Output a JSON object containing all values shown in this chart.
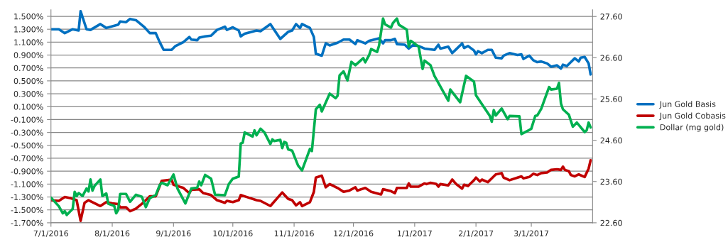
{
  "chart_data": {
    "type": "line",
    "grid": "y",
    "legend": "right",
    "line_style": "solid",
    "marker": "none",
    "xlim": [
      "2016-07-01",
      "2017-04-01"
    ],
    "xticks": [
      {
        "value": "2016-07-01",
        "label": "7/1/2016"
      },
      {
        "value": "2016-08-01",
        "label": "8/1/2016"
      },
      {
        "value": "2016-09-01",
        "label": "9/1/2016"
      },
      {
        "value": "2016-10-01",
        "label": "10/1/2016"
      },
      {
        "value": "2016-11-01",
        "label": "11/1/2016"
      },
      {
        "value": "2016-12-01",
        "label": "12/1/2016"
      },
      {
        "value": "2017-01-01",
        "label": "1/1/2017"
      },
      {
        "value": "2017-02-01",
        "label": "2/1/2017"
      },
      {
        "value": "2017-03-01",
        "label": "3/1/2017"
      }
    ],
    "ylim": [
      -1.7,
      1.6
    ],
    "yticks": [
      {
        "value": -1.7,
        "label": "-1.700%"
      },
      {
        "value": -1.5,
        "label": "-1.500%"
      },
      {
        "value": -1.3,
        "label": "-1.300%"
      },
      {
        "value": -1.1,
        "label": "-1.100%"
      },
      {
        "value": -0.9,
        "label": "-0.900%"
      },
      {
        "value": -0.7,
        "label": "-0.700%"
      },
      {
        "value": -0.5,
        "label": "-0.500%"
      },
      {
        "value": -0.3,
        "label": "-0.300%"
      },
      {
        "value": -0.1,
        "label": "-0.100%"
      },
      {
        "value": 0.1,
        "label": "0.100%"
      },
      {
        "value": 0.3,
        "label": "0.300%"
      },
      {
        "value": 0.5,
        "label": "0.500%"
      },
      {
        "value": 0.7,
        "label": "0.700%"
      },
      {
        "value": 0.9,
        "label": "0.900%"
      },
      {
        "value": 1.1,
        "label": "1.100%"
      },
      {
        "value": 1.3,
        "label": "1.300%"
      },
      {
        "value": 1.5,
        "label": "1.500%"
      }
    ],
    "y2lim": [
      22.6,
      27.76
    ],
    "y2ticks": [
      {
        "value": 22.6,
        "label": "22.60"
      },
      {
        "value": 23.6,
        "label": "23.60"
      },
      {
        "value": 24.6,
        "label": "24.60"
      },
      {
        "value": 25.6,
        "label": "25.60"
      },
      {
        "value": 26.6,
        "label": "26.60"
      },
      {
        "value": 27.6,
        "label": "27.60"
      }
    ],
    "series": [
      {
        "name": "Jun Gold Basis",
        "color": "#0070c0",
        "x": [
          "2016-07-01",
          "2016-07-05",
          "2016-07-08",
          "2016-07-12",
          "2016-07-15",
          "2016-07-16",
          "2016-07-19",
          "2016-07-21",
          "2016-07-26",
          "2016-07-29",
          "2016-08-04",
          "2016-08-05",
          "2016-08-08",
          "2016-08-10",
          "2016-08-13",
          "2016-08-17",
          "2016-08-20",
          "2016-08-23",
          "2016-08-25",
          "2016-08-27",
          "2016-08-31",
          "2016-09-02",
          "2016-09-06",
          "2016-09-09",
          "2016-09-10",
          "2016-09-13",
          "2016-09-14",
          "2016-09-17",
          "2016-09-20",
          "2016-09-23",
          "2016-09-27",
          "2016-09-28",
          "2016-10-01",
          "2016-10-04",
          "2016-10-05",
          "2016-10-07",
          "2016-10-13",
          "2016-10-15",
          "2016-10-20",
          "2016-10-25",
          "2016-10-29",
          "2016-10-31",
          "2016-11-02",
          "2016-11-04",
          "2016-11-05",
          "2016-11-09",
          "2016-11-11",
          "2016-11-12",
          "2016-11-15",
          "2016-11-17",
          "2016-11-19",
          "2016-11-23",
          "2016-11-26",
          "2016-11-29",
          "2016-12-02",
          "2016-12-03",
          "2016-12-07",
          "2016-12-09",
          "2016-12-14",
          "2016-12-16",
          "2016-12-17",
          "2016-12-20",
          "2016-12-22",
          "2016-12-23",
          "2016-12-27",
          "2016-12-29",
          "2016-12-31",
          "2017-01-03",
          "2017-01-06",
          "2017-01-11",
          "2017-01-13",
          "2017-01-14",
          "2017-01-18",
          "2017-01-20",
          "2017-01-22",
          "2017-01-25",
          "2017-01-26",
          "2017-01-28",
          "2017-01-31",
          "2017-02-01",
          "2017-02-02",
          "2017-02-04",
          "2017-02-07",
          "2017-02-09",
          "2017-02-11",
          "2017-02-14",
          "2017-02-15",
          "2017-02-18",
          "2017-02-22",
          "2017-02-24",
          "2017-02-25",
          "2017-02-28",
          "2017-03-02",
          "2017-03-04",
          "2017-03-06",
          "2017-03-09",
          "2017-03-11",
          "2017-03-14",
          "2017-03-16",
          "2017-03-17",
          "2017-03-19",
          "2017-03-21",
          "2017-03-23",
          "2017-03-25",
          "2017-03-26",
          "2017-03-28",
          "2017-03-30",
          "2017-03-31"
        ],
        "values": [
          1.3,
          1.3,
          1.24,
          1.3,
          1.28,
          1.58,
          1.3,
          1.29,
          1.38,
          1.32,
          1.37,
          1.42,
          1.41,
          1.46,
          1.44,
          1.34,
          1.24,
          1.24,
          1.1,
          0.98,
          0.98,
          1.04,
          1.1,
          1.18,
          1.14,
          1.13,
          1.17,
          1.19,
          1.2,
          1.29,
          1.34,
          1.29,
          1.33,
          1.28,
          1.19,
          1.23,
          1.28,
          1.27,
          1.38,
          1.15,
          1.26,
          1.28,
          1.38,
          1.32,
          1.38,
          1.32,
          1.18,
          0.92,
          0.89,
          1.08,
          1.05,
          1.09,
          1.14,
          1.14,
          1.07,
          1.13,
          1.08,
          1.12,
          1.16,
          1.08,
          1.13,
          1.13,
          1.15,
          1.07,
          1.06,
          1.0,
          1.05,
          1.04,
          1.0,
          0.98,
          1.06,
          1.0,
          1.03,
          0.93,
          0.99,
          1.08,
          1.01,
          1.04,
          0.97,
          0.91,
          0.96,
          0.93,
          0.98,
          0.98,
          0.86,
          0.85,
          0.89,
          0.93,
          0.9,
          0.91,
          0.84,
          0.89,
          0.82,
          0.79,
          0.8,
          0.77,
          0.72,
          0.74,
          0.69,
          0.75,
          0.73,
          0.79,
          0.85,
          0.8,
          0.86,
          0.87,
          0.77,
          0.6
        ]
      },
      {
        "name": "Jun Gold Cobasis",
        "color": "#c00000",
        "x": [
          "2016-07-01",
          "2016-07-05",
          "2016-07-08",
          "2016-07-11",
          "2016-07-14",
          "2016-07-16",
          "2016-07-18",
          "2016-07-20",
          "2016-07-22",
          "2016-07-26",
          "2016-07-29",
          "2016-08-01",
          "2016-08-04",
          "2016-08-05",
          "2016-08-08",
          "2016-08-10",
          "2016-08-13",
          "2016-08-17",
          "2016-08-20",
          "2016-08-23",
          "2016-08-26",
          "2016-08-31",
          "2016-09-01",
          "2016-09-06",
          "2016-09-09",
          "2016-09-10",
          "2016-09-14",
          "2016-09-16",
          "2016-09-20",
          "2016-09-23",
          "2016-09-27",
          "2016-09-28",
          "2016-10-01",
          "2016-10-04",
          "2016-10-05",
          "2016-10-07",
          "2016-10-13",
          "2016-10-15",
          "2016-10-20",
          "2016-10-26",
          "2016-10-29",
          "2016-10-31",
          "2016-11-02",
          "2016-11-04",
          "2016-11-05",
          "2016-11-09",
          "2016-11-11",
          "2016-11-12",
          "2016-11-15",
          "2016-11-17",
          "2016-11-19",
          "2016-11-23",
          "2016-11-26",
          "2016-11-29",
          "2016-12-02",
          "2016-12-03",
          "2016-12-07",
          "2016-12-10",
          "2016-12-15",
          "2016-12-16",
          "2016-12-20",
          "2016-12-22",
          "2016-12-23",
          "2016-12-28",
          "2016-12-29",
          "2016-12-30",
          "2017-01-03",
          "2017-01-06",
          "2017-01-07",
          "2017-01-09",
          "2017-01-12",
          "2017-01-13",
          "2017-01-14",
          "2017-01-18",
          "2017-01-20",
          "2017-01-22",
          "2017-01-25",
          "2017-01-26",
          "2017-01-28",
          "2017-01-31",
          "2017-02-01",
          "2017-02-03",
          "2017-02-04",
          "2017-02-07",
          "2017-02-09",
          "2017-02-11",
          "2017-02-14",
          "2017-02-15",
          "2017-02-18",
          "2017-02-22",
          "2017-02-24",
          "2017-02-25",
          "2017-02-28",
          "2017-03-02",
          "2017-03-04",
          "2017-03-06",
          "2017-03-09",
          "2017-03-11",
          "2017-03-14",
          "2017-03-16",
          "2017-03-17",
          "2017-03-18",
          "2017-03-20",
          "2017-03-21",
          "2017-03-23",
          "2017-03-25",
          "2017-03-28",
          "2017-03-30",
          "2017-03-31"
        ],
        "values": [
          -1.35,
          -1.36,
          -1.3,
          -1.32,
          -1.35,
          -1.67,
          -1.39,
          -1.35,
          -1.38,
          -1.44,
          -1.38,
          -1.4,
          -1.41,
          -1.46,
          -1.46,
          -1.52,
          -1.48,
          -1.38,
          -1.29,
          -1.29,
          -1.05,
          -1.03,
          -1.11,
          -1.16,
          -1.24,
          -1.19,
          -1.18,
          -1.24,
          -1.27,
          -1.35,
          -1.39,
          -1.36,
          -1.38,
          -1.35,
          -1.27,
          -1.29,
          -1.35,
          -1.36,
          -1.44,
          -1.23,
          -1.33,
          -1.35,
          -1.43,
          -1.38,
          -1.44,
          -1.38,
          -1.22,
          -1.0,
          -0.97,
          -1.15,
          -1.1,
          -1.16,
          -1.22,
          -1.2,
          -1.15,
          -1.2,
          -1.16,
          -1.22,
          -1.26,
          -1.18,
          -1.21,
          -1.24,
          -1.16,
          -1.16,
          -1.09,
          -1.14,
          -1.14,
          -1.09,
          -1.1,
          -1.08,
          -1.1,
          -1.14,
          -1.1,
          -1.12,
          -1.03,
          -1.1,
          -1.17,
          -1.11,
          -1.13,
          -1.04,
          -1.0,
          -1.06,
          -1.03,
          -1.07,
          -1.01,
          -0.95,
          -0.93,
          -1.0,
          -1.04,
          -1.0,
          -0.98,
          -1.01,
          -0.99,
          -0.94,
          -0.96,
          -0.93,
          -0.92,
          -0.88,
          -0.87,
          -0.88,
          -0.83,
          -0.88,
          -0.9,
          -0.96,
          -0.98,
          -0.95,
          -0.99,
          -0.86,
          -0.73
        ]
      },
      {
        "name": "Dollar (mg gold)",
        "color": "#00b050",
        "axis": "y2",
        "x": [
          "2016-07-01",
          "2016-07-05",
          "2016-07-07",
          "2016-07-08",
          "2016-07-09",
          "2016-07-12",
          "2016-07-13",
          "2016-07-14",
          "2016-07-15",
          "2016-07-17",
          "2016-07-19",
          "2016-07-20",
          "2016-07-21",
          "2016-07-22",
          "2016-07-23",
          "2016-07-26",
          "2016-07-27",
          "2016-07-29",
          "2016-07-30",
          "2016-08-02",
          "2016-08-03",
          "2016-08-04",
          "2016-08-05",
          "2016-08-08",
          "2016-08-10",
          "2016-08-13",
          "2016-08-16",
          "2016-08-18",
          "2016-08-20",
          "2016-08-23",
          "2016-08-25",
          "2016-08-26",
          "2016-08-29",
          "2016-09-01",
          "2016-09-03",
          "2016-09-07",
          "2016-09-10",
          "2016-09-13",
          "2016-09-14",
          "2016-09-15",
          "2016-09-17",
          "2016-09-20",
          "2016-09-22",
          "2016-09-27",
          "2016-09-29",
          "2016-10-01",
          "2016-10-04",
          "2016-10-05",
          "2016-10-06",
          "2016-10-07",
          "2016-10-11",
          "2016-10-12",
          "2016-10-13",
          "2016-10-15",
          "2016-10-17",
          "2016-10-20",
          "2016-10-21",
          "2016-10-22",
          "2016-10-25",
          "2016-10-26",
          "2016-10-27",
          "2016-10-28",
          "2016-10-29",
          "2016-10-31",
          "2016-11-03",
          "2016-11-05",
          "2016-11-09",
          "2016-11-10",
          "2016-11-12",
          "2016-11-14",
          "2016-11-15",
          "2016-11-19",
          "2016-11-22",
          "2016-11-23",
          "2016-11-24",
          "2016-11-26",
          "2016-11-28",
          "2016-11-30",
          "2016-12-02",
          "2016-12-06",
          "2016-12-07",
          "2016-12-09",
          "2016-12-10",
          "2016-12-13",
          "2016-12-14",
          "2016-12-16",
          "2016-12-17",
          "2016-12-20",
          "2016-12-21",
          "2016-12-23",
          "2016-12-24",
          "2016-12-28",
          "2016-12-29",
          "2016-12-30",
          "2017-01-03",
          "2017-01-05",
          "2017-01-06",
          "2017-01-09",
          "2017-01-11",
          "2017-01-18",
          "2017-01-19",
          "2017-01-24",
          "2017-01-27",
          "2017-01-31",
          "2017-02-01",
          "2017-02-08",
          "2017-02-09",
          "2017-02-10",
          "2017-02-11",
          "2017-02-14",
          "2017-02-17",
          "2017-02-18",
          "2017-02-23",
          "2017-02-24",
          "2017-02-28",
          "2017-03-01",
          "2017-03-03",
          "2017-03-04",
          "2017-03-06",
          "2017-03-10",
          "2017-03-11",
          "2017-03-14",
          "2017-03-15",
          "2017-03-16",
          "2017-03-17",
          "2017-03-20",
          "2017-03-22",
          "2017-03-24",
          "2017-03-28",
          "2017-03-29",
          "2017-03-30",
          "2017-03-31"
        ],
        "values": [
          23.21,
          23.0,
          22.83,
          22.88,
          22.79,
          22.94,
          23.35,
          23.25,
          23.32,
          23.25,
          23.43,
          23.36,
          23.65,
          23.38,
          23.49,
          23.65,
          23.25,
          23.31,
          23.06,
          23.01,
          22.83,
          22.91,
          23.3,
          23.3,
          23.11,
          23.28,
          23.23,
          22.98,
          23.2,
          23.27,
          23.51,
          23.57,
          23.51,
          23.77,
          23.43,
          23.07,
          23.43,
          23.45,
          23.6,
          23.51,
          23.76,
          23.67,
          23.28,
          23.27,
          23.54,
          23.67,
          23.72,
          24.52,
          24.54,
          24.79,
          24.69,
          24.84,
          24.72,
          24.88,
          24.79,
          24.51,
          24.62,
          24.58,
          24.61,
          24.41,
          24.56,
          24.54,
          24.38,
          24.35,
          23.99,
          23.87,
          24.39,
          24.34,
          25.35,
          25.46,
          25.3,
          25.73,
          25.62,
          25.68,
          26.17,
          26.27,
          26.05,
          26.5,
          26.42,
          26.59,
          26.49,
          26.67,
          26.81,
          26.74,
          26.9,
          27.55,
          27.41,
          27.33,
          27.44,
          27.55,
          27.4,
          27.28,
          26.87,
          27.01,
          26.87,
          26.33,
          26.53,
          26.42,
          26.16,
          25.56,
          25.83,
          25.52,
          26.16,
          26.02,
          25.69,
          25.19,
          25.05,
          25.33,
          25.2,
          25.37,
          25.11,
          25.19,
          25.18,
          24.75,
          24.85,
          24.88,
          25.19,
          25.2,
          25.36,
          25.89,
          25.83,
          25.85,
          25.99,
          25.49,
          25.35,
          25.22,
          24.93,
          25.03,
          24.8,
          24.84,
          25.03,
          24.91
        ]
      }
    ]
  }
}
